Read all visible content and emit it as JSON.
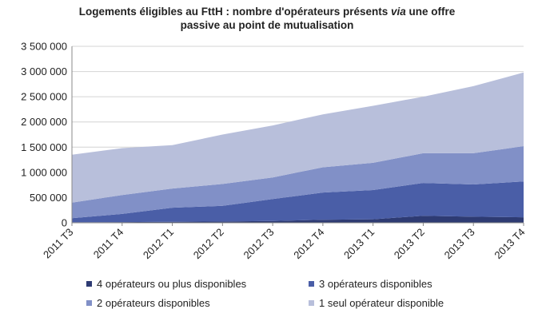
{
  "header": {
    "title_part1": "Logements éligibles au FttH : nombre d'opérateurs présents ",
    "title_italic": "via",
    "title_part2": " une offre",
    "title_line2": "passive au point de mutualisation"
  },
  "chart_data": {
    "type": "area",
    "stacked": true,
    "title": "Logements éligibles au FttH : nombre d'opérateurs présents via une offre passive au point de mutualisation",
    "xlabel": "",
    "ylabel": "",
    "categories": [
      "2011 T3",
      "2011 T4",
      "2012 T1",
      "2012 T2",
      "2012 T3",
      "2012 T4",
      "2013 T1",
      "2013 T2",
      "2013 T3",
      "2013 T4"
    ],
    "ylim": [
      0,
      3500000
    ],
    "yticks": [
      0,
      500000,
      1000000,
      1500000,
      2000000,
      2500000,
      3000000,
      3500000
    ],
    "ytick_labels": [
      "0",
      "500 000",
      "1 000 000",
      "1 500 000",
      "2 000 000",
      "2 500 000",
      "3 000 000",
      "3 500 000"
    ],
    "grid": "horizontal",
    "legend_position": "bottom",
    "series": [
      {
        "name": "4 opérateurs ou plus disponibles",
        "color": "#2e3b73",
        "values": [
          10000,
          15000,
          20000,
          25000,
          35000,
          60000,
          70000,
          140000,
          120000,
          110000
        ]
      },
      {
        "name": "3 opérateurs disponibles",
        "color": "#4a5ea7",
        "values": [
          80000,
          160000,
          280000,
          310000,
          435000,
          540000,
          580000,
          650000,
          640000,
          710000
        ]
      },
      {
        "name": "2 opérateurs disponibles",
        "color": "#8190c7",
        "values": [
          310000,
          375000,
          380000,
          435000,
          430000,
          500000,
          540000,
          590000,
          620000,
          700000
        ]
      },
      {
        "name": "1 seul opérateur disponible",
        "color": "#b8bfdb",
        "values": [
          950000,
          930000,
          860000,
          980000,
          1030000,
          1050000,
          1130000,
          1120000,
          1330000,
          1460000
        ]
      }
    ]
  }
}
